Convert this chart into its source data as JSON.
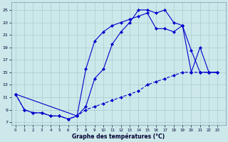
{
  "background_color": "#cce8ea",
  "grid_color": "#aacccc",
  "line_color": "#0000cc",
  "title": "Graphe des températures (°C)",
  "ylabel_ticks": [
    7,
    9,
    11,
    13,
    15,
    17,
    19,
    21,
    23,
    25
  ],
  "xlabel_ticks": [
    0,
    1,
    2,
    3,
    4,
    5,
    6,
    7,
    8,
    9,
    10,
    11,
    12,
    13,
    14,
    15,
    16,
    17,
    18,
    19,
    20,
    21,
    22,
    23
  ],
  "xlim": [
    -0.5,
    23.9
  ],
  "ylim": [
    6.5,
    26.2
  ],
  "line1_x": [
    0,
    1,
    2,
    3,
    4,
    5,
    6,
    7,
    8,
    9,
    10,
    11,
    12,
    13,
    14,
    15,
    16,
    17,
    18,
    19,
    20,
    21,
    22,
    23
  ],
  "line1_y": [
    11.5,
    9.0,
    8.5,
    8.5,
    8.0,
    8.0,
    7.5,
    8.0,
    9.5,
    14.0,
    15.5,
    19.5,
    21.5,
    23.0,
    25.0,
    25.0,
    24.5,
    25.0,
    23.0,
    22.5,
    18.5,
    15.0,
    15.0,
    15.0
  ],
  "line2_x": [
    0,
    1,
    2,
    3,
    4,
    5,
    6,
    7,
    8,
    9,
    10,
    11,
    12,
    13,
    14,
    15,
    16,
    17,
    18,
    19,
    20,
    21,
    22,
    23
  ],
  "line2_y": [
    11.5,
    9.0,
    8.5,
    8.5,
    8.0,
    8.0,
    7.5,
    8.0,
    9.0,
    9.5,
    10.0,
    10.5,
    11.0,
    11.5,
    12.0,
    13.0,
    13.5,
    14.0,
    14.5,
    15.0,
    15.0,
    15.0,
    15.0,
    15.0
  ],
  "line3_x": [
    0,
    7,
    8,
    9,
    10,
    11,
    12,
    13,
    14,
    15,
    16,
    17,
    18,
    19,
    20,
    21,
    22,
    23
  ],
  "line3_y": [
    11.5,
    8.0,
    15.5,
    20.0,
    21.5,
    22.5,
    23.0,
    23.5,
    24.0,
    24.5,
    22.0,
    22.0,
    21.5,
    22.5,
    15.0,
    19.0,
    15.0,
    15.0
  ]
}
